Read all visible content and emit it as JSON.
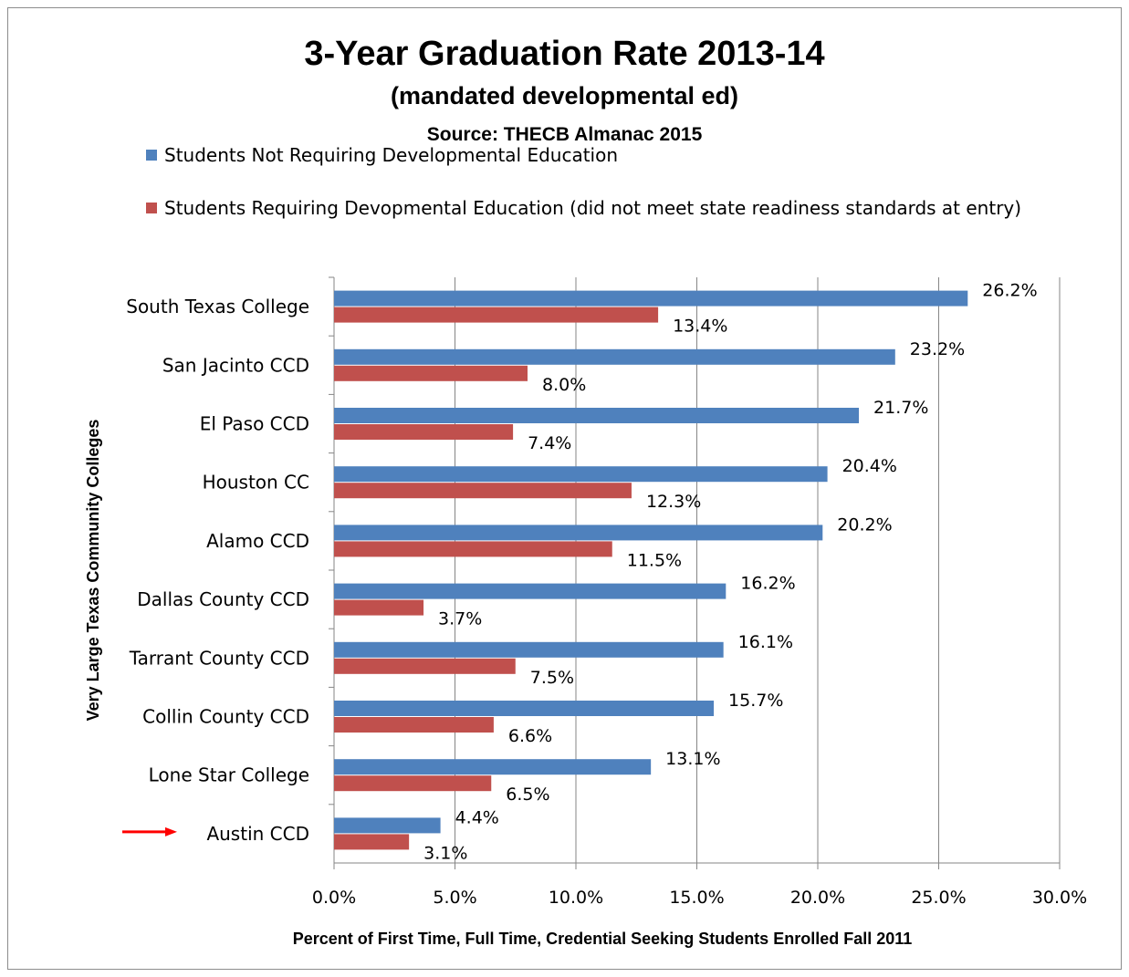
{
  "chart_data": {
    "type": "bar",
    "orientation": "horizontal",
    "title": "3-Year Graduation Rate 2013-14",
    "subtitle": "(mandated developmental ed)",
    "source": "Source: THECB Almanac 2015",
    "xlabel": "Percent of First Time, Full Time, Credential Seeking Students Enrolled Fall 2011",
    "ylabel": "Very Large Texas Community Colleges",
    "xlim": [
      0,
      30
    ],
    "xticks": [
      "0.0%",
      "5.0%",
      "10.0%",
      "15.0%",
      "20.0%",
      "25.0%",
      "30.0%"
    ],
    "grid": "vertical",
    "legend_position": "top",
    "categories": [
      "South Texas College",
      "San Jacinto CCD",
      "El Paso CCD",
      "Houston CC",
      "Alamo CCD",
      "Dallas County CCD",
      "Tarrant County CCD",
      "Collin County CCD",
      "Lone Star College",
      "Austin CCD"
    ],
    "series": [
      {
        "name": "Students Not Requiring Developmental Education",
        "color": "#4f81bd",
        "values": [
          26.2,
          23.2,
          21.7,
          20.4,
          20.2,
          16.2,
          16.1,
          15.7,
          13.1,
          4.4
        ],
        "labels": [
          "26.2%",
          "23.2%",
          "21.7%",
          "20.4%",
          "20.2%",
          "16.2%",
          "16.1%",
          "15.7%",
          "13.1%",
          "4.4%"
        ]
      },
      {
        "name": "Students Requiring Devopmental Education (did not meet state readiness standards at entry)",
        "color": "#c0504d",
        "values": [
          13.4,
          8.0,
          7.4,
          12.3,
          11.5,
          3.7,
          7.5,
          6.6,
          6.5,
          3.1
        ],
        "labels": [
          "13.4%",
          "8.0%",
          "7.4%",
          "12.3%",
          "11.5%",
          "3.7%",
          "7.5%",
          "6.6%",
          "6.5%",
          "3.1%"
        ]
      }
    ],
    "annotation": {
      "type": "arrow",
      "points_to": "Austin CCD",
      "color": "#ff0000"
    }
  }
}
